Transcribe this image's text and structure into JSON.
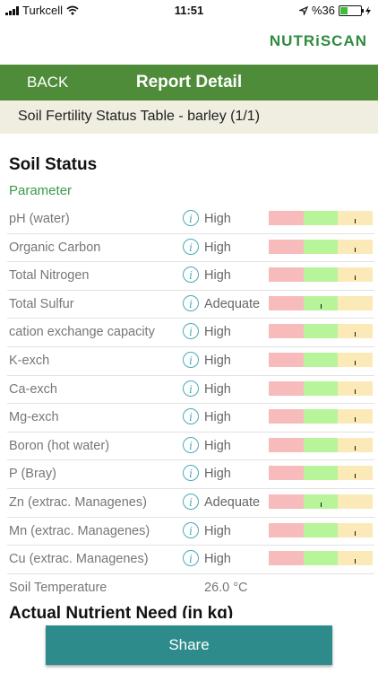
{
  "status_bar": {
    "carrier": "Turkcell",
    "time": "11:51",
    "battery_percent": "%36",
    "battery_level": 0.36
  },
  "brand": {
    "logo_text": "NUTRiSCAN"
  },
  "navbar": {
    "back_label": "BACK",
    "title": "Report Detail"
  },
  "subheader": {
    "text": "Soil Fertility Status Table - barley (1/1)"
  },
  "soil_status": {
    "title": "Soil Status",
    "parameter_header": "Parameter",
    "rows": [
      {
        "name": "pH (water)",
        "status": "High",
        "level": 0.83
      },
      {
        "name": "Organic Carbon",
        "status": "High",
        "level": 0.83
      },
      {
        "name": "Total Nitrogen",
        "status": "High",
        "level": 0.83
      },
      {
        "name": "Total Sulfur",
        "status": "Adequate",
        "level": 0.5
      },
      {
        "name": "cation exchange capacity",
        "status": "High",
        "level": 0.83
      },
      {
        "name": "K-exch",
        "status": "High",
        "level": 0.83
      },
      {
        "name": "Ca-exch",
        "status": "High",
        "level": 0.83
      },
      {
        "name": "Mg-exch",
        "status": "High",
        "level": 0.83
      },
      {
        "name": "Boron (hot water)",
        "status": "High",
        "level": 0.83
      },
      {
        "name": "P (Bray)",
        "status": "High",
        "level": 0.83
      },
      {
        "name": "Zn (extrac. Managenes)",
        "status": "Adequate",
        "level": 0.5
      },
      {
        "name": "Mn (extrac. Managenes)",
        "status": "High",
        "level": 0.83
      },
      {
        "name": "Cu (extrac. Managenes)",
        "status": "High",
        "level": 0.83
      }
    ],
    "temperature": {
      "name": "Soil Temperature",
      "value": "26.0 °C"
    }
  },
  "section2": {
    "title": "Actual Nutrient Need (in kg)"
  },
  "share_label": "Share",
  "colors": {
    "navbar": "#4e8c3a",
    "brand": "#2f8b3f",
    "share": "#2e8b8b",
    "low": "#f8bbbb",
    "adequate": "#b8f59a",
    "high": "#fbeab7"
  },
  "icons": {
    "info": "info-icon",
    "wifi": "wifi-icon",
    "signal": "signal-icon",
    "location": "location-arrow-icon",
    "battery": "battery-icon",
    "charging": "charging-icon"
  }
}
